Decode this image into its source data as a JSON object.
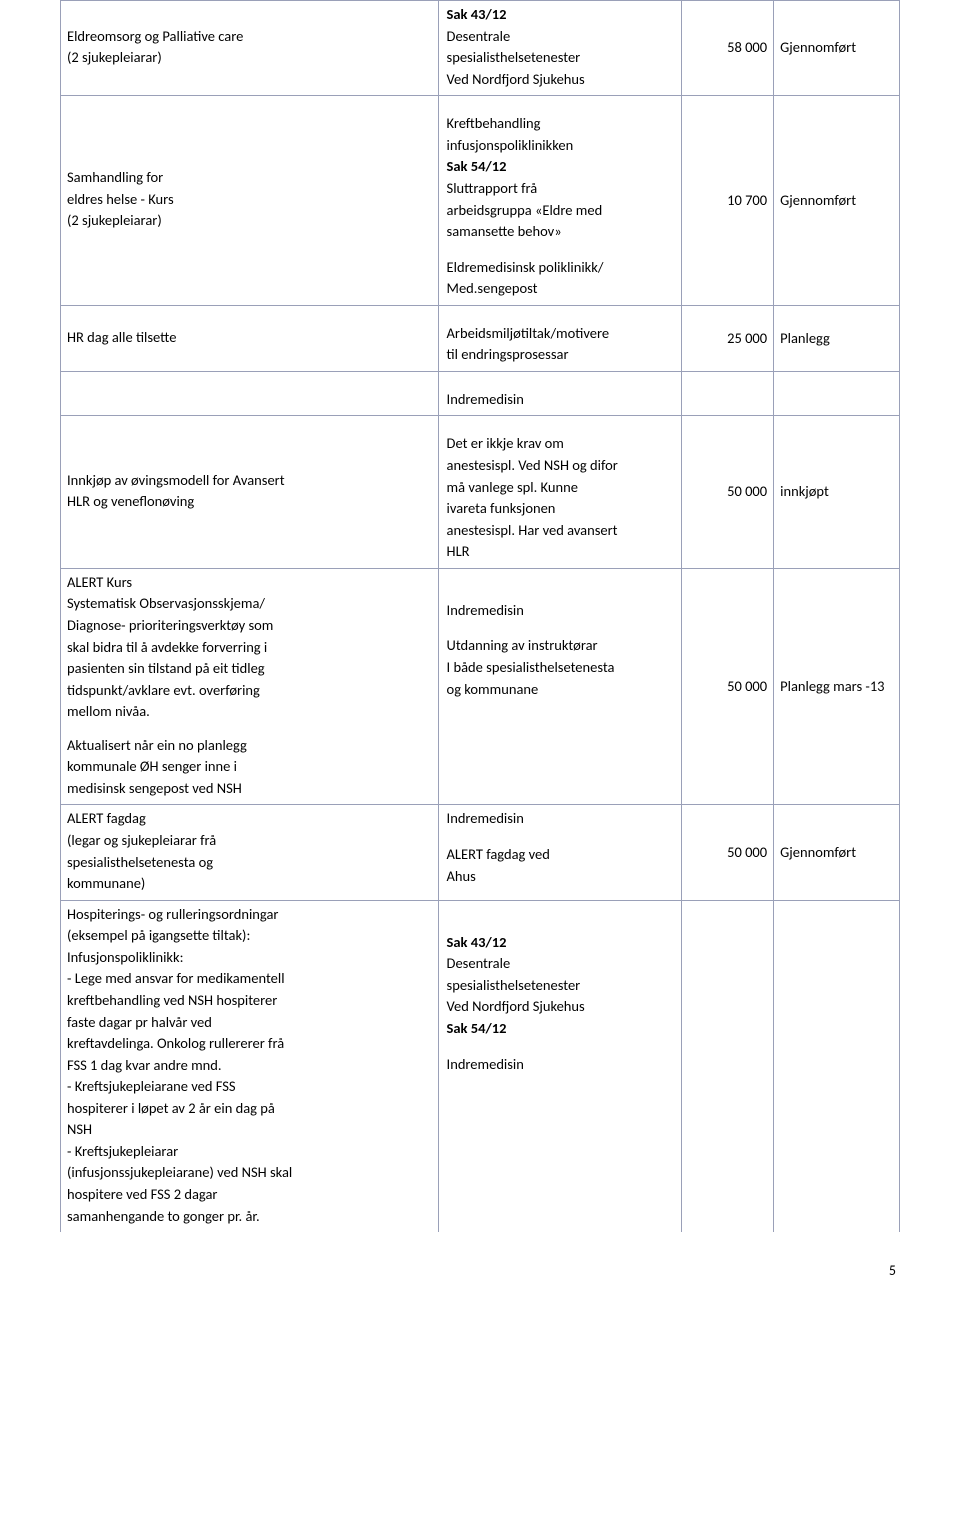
{
  "rows": [
    {
      "c1": {
        "lines": [
          "Eldreomsorg og Palliative  care",
          "(2 sjukepleiarar)"
        ],
        "vmid": true
      },
      "c2": {
        "blocks": [
          {
            "bold": true,
            "text": "Sak 43/12"
          },
          {
            "text": "Desentrale"
          },
          {
            "text": "spesialisthelsetenester"
          },
          {
            "text": "Ved Nordfjord Sjukehus"
          }
        ]
      },
      "c3": {
        "text": "58 000",
        "vmid": true
      },
      "c4": {
        "text": "Gjennomført",
        "vmid": true
      }
    },
    {
      "c1": {
        "lines": [
          "Samhandling for",
          "eldres helse - Kurs",
          "(2 sjukepleiarar)"
        ],
        "vmid": true
      },
      "c2": {
        "blocks": [
          {
            "gap": true
          },
          {
            "text": "Kreftbehandling"
          },
          {
            "text": "infusjonspoliklinikken"
          },
          {
            "bold": true,
            "text": "Sak 54/12"
          },
          {
            "text": "Sluttrapport frå"
          },
          {
            "text": "arbeidsgruppa «Eldre med"
          },
          {
            "text": "samansette behov»"
          },
          {
            "gap": true
          },
          {
            "text": "Eldremedisinsk poliklinikk/"
          },
          {
            "text": "Med.sengepost"
          }
        ]
      },
      "c3": {
        "text": "10 700",
        "vmid": true
      },
      "c4": {
        "text": "Gjennomført",
        "vmid": true
      }
    },
    {
      "c1": {
        "lines": [
          "HR dag alle tilsette"
        ],
        "vmid": true
      },
      "c2": {
        "blocks": [
          {
            "gap": true
          },
          {
            "text": "Arbeidsmiljøtiltak/motivere"
          },
          {
            "text": "til endringsprosessar"
          }
        ]
      },
      "c3": {
        "text": "25 000",
        "vmid": true
      },
      "c4": {
        "text": "Planlegg",
        "vmid": true
      }
    },
    {
      "c1": {
        "lines": [
          ""
        ]
      },
      "c2": {
        "blocks": [
          {
            "gap": true
          },
          {
            "text": "Indremedisin"
          }
        ]
      },
      "c3": {
        "text": ""
      },
      "c4": {
        "text": ""
      }
    },
    {
      "c1": {
        "lines": [
          "Innkjøp av øvingsmodell for Avansert",
          "HLR og veneflonøving"
        ],
        "vmid": true
      },
      "c2": {
        "blocks": [
          {
            "gap": true
          },
          {
            "text": "Det er ikkje krav om"
          },
          {
            "text": "anestesispl. Ved NSH og difor"
          },
          {
            "text": "må vanlege spl. Kunne"
          },
          {
            "text": "ivareta funksjonen"
          },
          {
            "text": "anestesispl. Har ved avansert"
          },
          {
            "text": "HLR"
          }
        ]
      },
      "c3": {
        "text": "50 000",
        "vmid": true
      },
      "c4": {
        "text": "innkjøpt",
        "vmid": true
      }
    },
    {
      "c1": {
        "lines": [
          "ALERT Kurs",
          "Systematisk Observasjonsskjema/",
          "Diagnose- prioriteringsverktøy som",
          "skal bidra til å avdekke forverring i",
          "pasienten  sin tilstand på eit tidleg",
          "tidspunkt/avklare evt. overføring",
          "mellom nivåa.",
          "",
          "Aktualisert når ein no planlegg",
          "kommunale ØH senger inne i",
          "medisinsk sengepost ved NSH"
        ]
      },
      "c2": {
        "blocks": [
          {
            "gap": true
          },
          {
            "gap": true
          },
          {
            "text": "Indremedisin"
          },
          {
            "gap": true
          },
          {
            "text": "Utdanning av instruktørar"
          },
          {
            "text": "I både spesialisthelsetenesta"
          },
          {
            "text": "og kommunane"
          }
        ]
      },
      "c3": {
        "text": "50 000",
        "vmid": true
      },
      "c4": {
        "text": "Planlegg mars -13",
        "vmid": true
      }
    },
    {
      "c1": {
        "lines": [
          "ALERT fagdag",
          "(legar og sjukepleiarar frå",
          "spesialisthelsetenesta og",
          "kommunane)"
        ]
      },
      "c2": {
        "blocks": [
          {
            "text": "Indremedisin"
          },
          {
            "gap": true
          },
          {
            "text": "ALERT fagdag  ved"
          },
          {
            "text": "Ahus"
          }
        ]
      },
      "c3": {
        "text": "50 000",
        "vmid": true
      },
      "c4": {
        "text": "Gjennomført",
        "vmid": true
      }
    },
    {
      "c1": {
        "lines": [
          "Hospiterings- og rulleringsordningar",
          "(eksempel på igangsette tiltak):",
          "Infusjonspoliklinikk:",
          "- Lege med ansvar for  medikamentell",
          "kreftbehandling ved NSH hospiterer",
          "faste dagar pr halvår ved",
          "kreftavdelinga. Onkolog rullererer frå",
          "FSS 1 dag kvar andre mnd.",
          "- Kreftsjukepleiarane ved FSS",
          "hospiterer i løpet av 2 år ein dag på",
          "NSH",
          "- Kreftsjukepleiarar",
          "(infusjonssjukepleiarane) ved NSH skal",
          "hospitere ved FSS 2 dagar",
          "samanhengande to gonger pr. år."
        ],
        "noBottom": true
      },
      "c2": {
        "blocks": [
          {
            "gap": true
          },
          {
            "gap": true
          },
          {
            "bold": true,
            "text": "Sak 43/12"
          },
          {
            "text": "Desentrale"
          },
          {
            "text": "spesialisthelsetenester"
          },
          {
            "text": "Ved Nordfjord Sjukehus"
          },
          {
            "bold": true,
            "text": "Sak 54/12"
          },
          {
            "gap": true
          },
          {
            "text": "Indremedisin"
          }
        ],
        "noBottom": true
      },
      "c3": {
        "text": "",
        "noBottom": true
      },
      "c4": {
        "text": "",
        "noBottom": true
      }
    }
  ],
  "pageNumber": "5"
}
